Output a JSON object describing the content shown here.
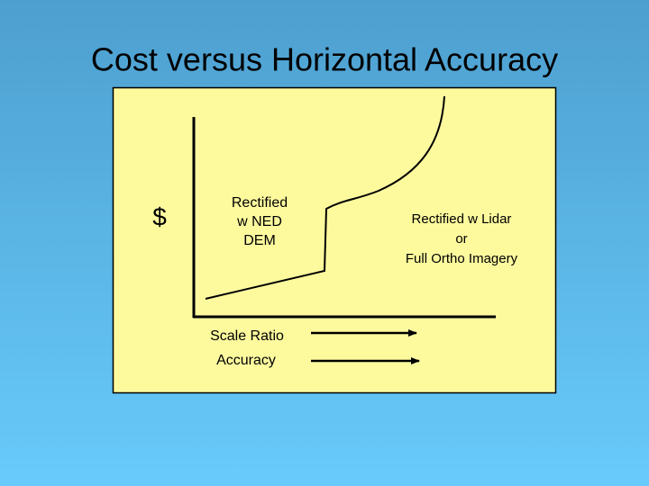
{
  "header": {
    "title": "Cost versus Horizontal Accuracy"
  },
  "diagram": {
    "y_axis_label": "$",
    "regions": [
      {
        "lines": [
          "Rectified",
          "w NED",
          "DEM"
        ]
      },
      {
        "lines": [
          "Rectified w Lidar",
          "or",
          "Full Ortho Imagery"
        ]
      }
    ],
    "x_axis_labels": [
      "Scale Ratio",
      "Accuracy"
    ]
  }
}
